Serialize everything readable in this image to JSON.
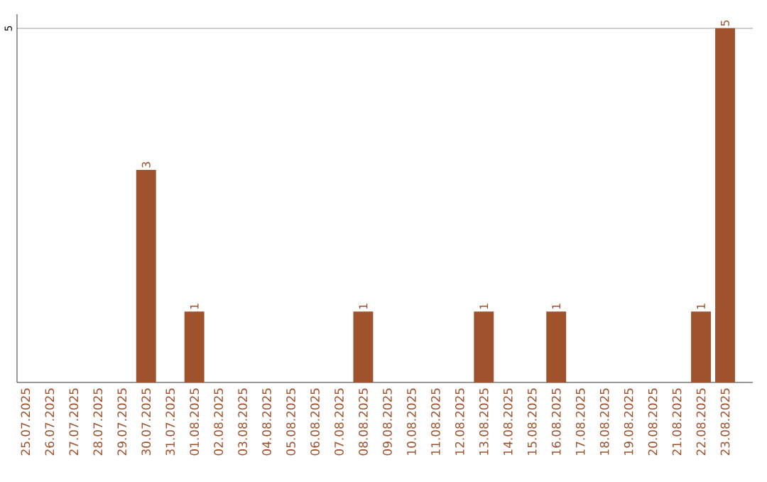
{
  "chart_data": {
    "type": "bar",
    "categories": [
      "25.07.2025",
      "26.07.2025",
      "27.07.2025",
      "28.07.2025",
      "29.07.2025",
      "30.07.2025",
      "31.07.2025",
      "01.08.2025",
      "02.08.2025",
      "03.08.2025",
      "04.08.2025",
      "05.08.2025",
      "06.08.2025",
      "07.08.2025",
      "08.08.2025",
      "09.08.2025",
      "10.08.2025",
      "11.08.2025",
      "12.08.2025",
      "13.08.2025",
      "14.08.2025",
      "15.08.2025",
      "16.08.2025",
      "17.08.2025",
      "18.08.2025",
      "19.08.2025",
      "20.08.2025",
      "21.08.2025",
      "22.08.2025",
      "23.08.2025"
    ],
    "values": [
      0,
      0,
      0,
      0,
      0,
      3,
      0,
      1,
      0,
      0,
      0,
      0,
      0,
      0,
      1,
      0,
      0,
      0,
      0,
      1,
      0,
      0,
      1,
      0,
      0,
      0,
      0,
      0,
      1,
      5
    ],
    "value_labels": [
      null,
      null,
      null,
      null,
      null,
      "3",
      null,
      "1",
      null,
      null,
      null,
      null,
      null,
      null,
      "1",
      null,
      null,
      null,
      null,
      "1",
      null,
      null,
      "1",
      null,
      null,
      null,
      null,
      null,
      "1",
      "5"
    ],
    "color": "#a0522d",
    "ylim": [
      0,
      5.2
    ],
    "yticks": [
      5
    ],
    "grid": "y"
  }
}
